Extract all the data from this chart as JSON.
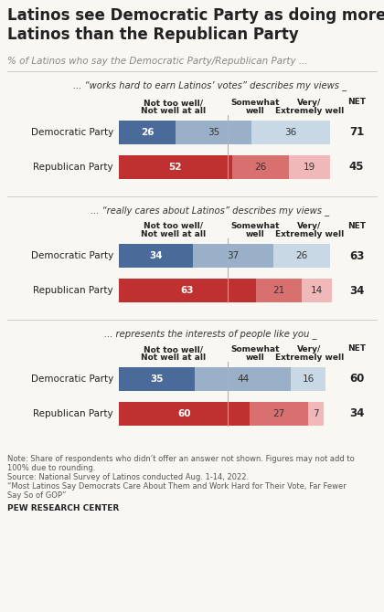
{
  "title": "Latinos see Democratic Party as doing more for\nLatinos than the Republican Party",
  "subtitle": "% of Latinos who say the Democratic Party/Republican Party ...",
  "sections": [
    {
      "label": "... “works hard to earn Latinos’ votes” describes my views _",
      "rows": [
        {
          "name": "Democratic Party",
          "values": [
            26,
            35,
            36
          ],
          "net": 71,
          "colors": [
            "#4a6b9a",
            "#9ab0c8",
            "#c8d8e4"
          ],
          "party": "dem"
        },
        {
          "name": "Republican Party",
          "values": [
            52,
            26,
            19
          ],
          "net": 45,
          "colors": [
            "#bf3030",
            "#d97070",
            "#f0b8b8"
          ],
          "party": "rep"
        }
      ]
    },
    {
      "label": "... “really cares about Latinos” describes my views _",
      "rows": [
        {
          "name": "Democratic Party",
          "values": [
            34,
            37,
            26
          ],
          "net": 63,
          "colors": [
            "#4a6b9a",
            "#9ab0c8",
            "#c8d8e4"
          ],
          "party": "dem"
        },
        {
          "name": "Republican Party",
          "values": [
            63,
            21,
            14
          ],
          "net": 34,
          "colors": [
            "#bf3030",
            "#d97070",
            "#f0b8b8"
          ],
          "party": "rep"
        }
      ]
    },
    {
      "label": "... represents the interests of people like you _",
      "rows": [
        {
          "name": "Democratic Party",
          "values": [
            35,
            44,
            16
          ],
          "net": 60,
          "colors": [
            "#4a6b9a",
            "#9ab0c8",
            "#c8d8e4"
          ],
          "party": "dem"
        },
        {
          "name": "Republican Party",
          "values": [
            60,
            27,
            7
          ],
          "net": 34,
          "colors": [
            "#bf3030",
            "#d97070",
            "#f0b8b8"
          ],
          "party": "rep"
        }
      ]
    }
  ],
  "col_headers": [
    "Not too well/\nNot well at all",
    "Somewhat\nwell",
    "Very/\nExtremely well",
    "NET"
  ],
  "note1": "Note: Share of respondents who didn’t offer an answer not shown. Figures may not add to",
  "note2": "100% due to rounding.",
  "note3": "Source: National Survey of Latinos conducted Aug. 1-14, 2022.",
  "note4": "“Most Latinos Say Democrats Care About Them and Work Hard for Their Vote, Far Fewer",
  "note5": "Say So of GOP”",
  "footer": "PEW RESEARCH CENTER",
  "bg_color": "#f9f7f2",
  "text_color": "#222222",
  "subtitle_color": "#888888"
}
